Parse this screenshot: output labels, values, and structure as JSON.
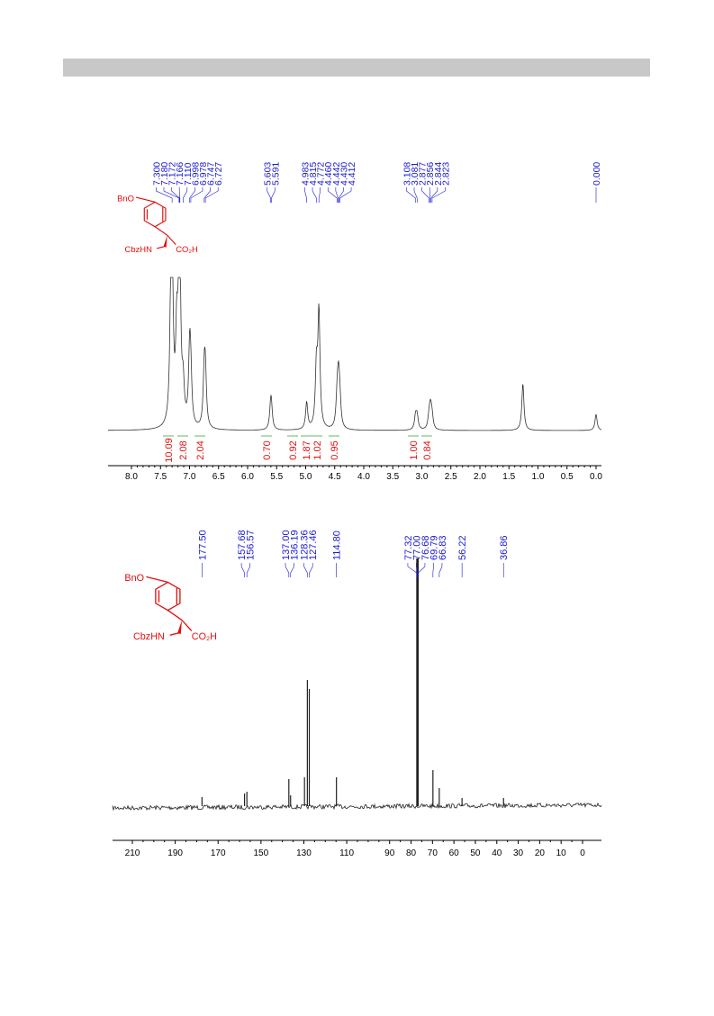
{
  "spectra": [
    {
      "peak_labels": [
        "7.300",
        "7.180",
        "7.172",
        "7.166",
        "7.110",
        "6.998",
        "6.978",
        "6.747",
        "6.727",
        "5.603",
        "5.591",
        "4.983",
        "4.815",
        "4.772",
        "4.460",
        "4.442",
        "4.430",
        "4.412",
        "3.108",
        "3.081",
        "2.877",
        "2.856",
        "2.844",
        "2.823",
        "0.000"
      ],
      "structure": {
        "substituent": "BnO",
        "amine": "CbzHN",
        "acid": "CO₂H"
      },
      "integrals": [
        "10.09",
        "2.08",
        "2.04",
        "0.70",
        "0.92",
        "1.87",
        "1.02",
        "0.95",
        "1.00",
        "0.84"
      ],
      "axis_labels": [
        "8.0",
        "7.5",
        "7.0",
        "6.5",
        "6.0",
        "5.5",
        "5.0",
        "4.5",
        "4.0",
        "3.5",
        "3.0",
        "2.5",
        "2.0",
        "1.5",
        "1.0",
        "0.5",
        "0.0"
      ]
    },
    {
      "peak_labels": [
        "177.50",
        "157.68",
        "156.57",
        "137.00",
        "136.19",
        "128.36",
        "127.46",
        "114.80",
        "77.32",
        "77.00",
        "76.68",
        "69.79",
        "66.83",
        "56.22",
        "36.86"
      ],
      "structure": {
        "substituent": "BnO",
        "amine": "CbzHN",
        "acid": "CO₂H"
      },
      "axis_labels": [
        "210",
        "190",
        "170",
        "150",
        "130",
        "110",
        "90",
        "80",
        "70",
        "60",
        "50",
        "40",
        "30",
        "20",
        "10",
        "0"
      ]
    }
  ]
}
